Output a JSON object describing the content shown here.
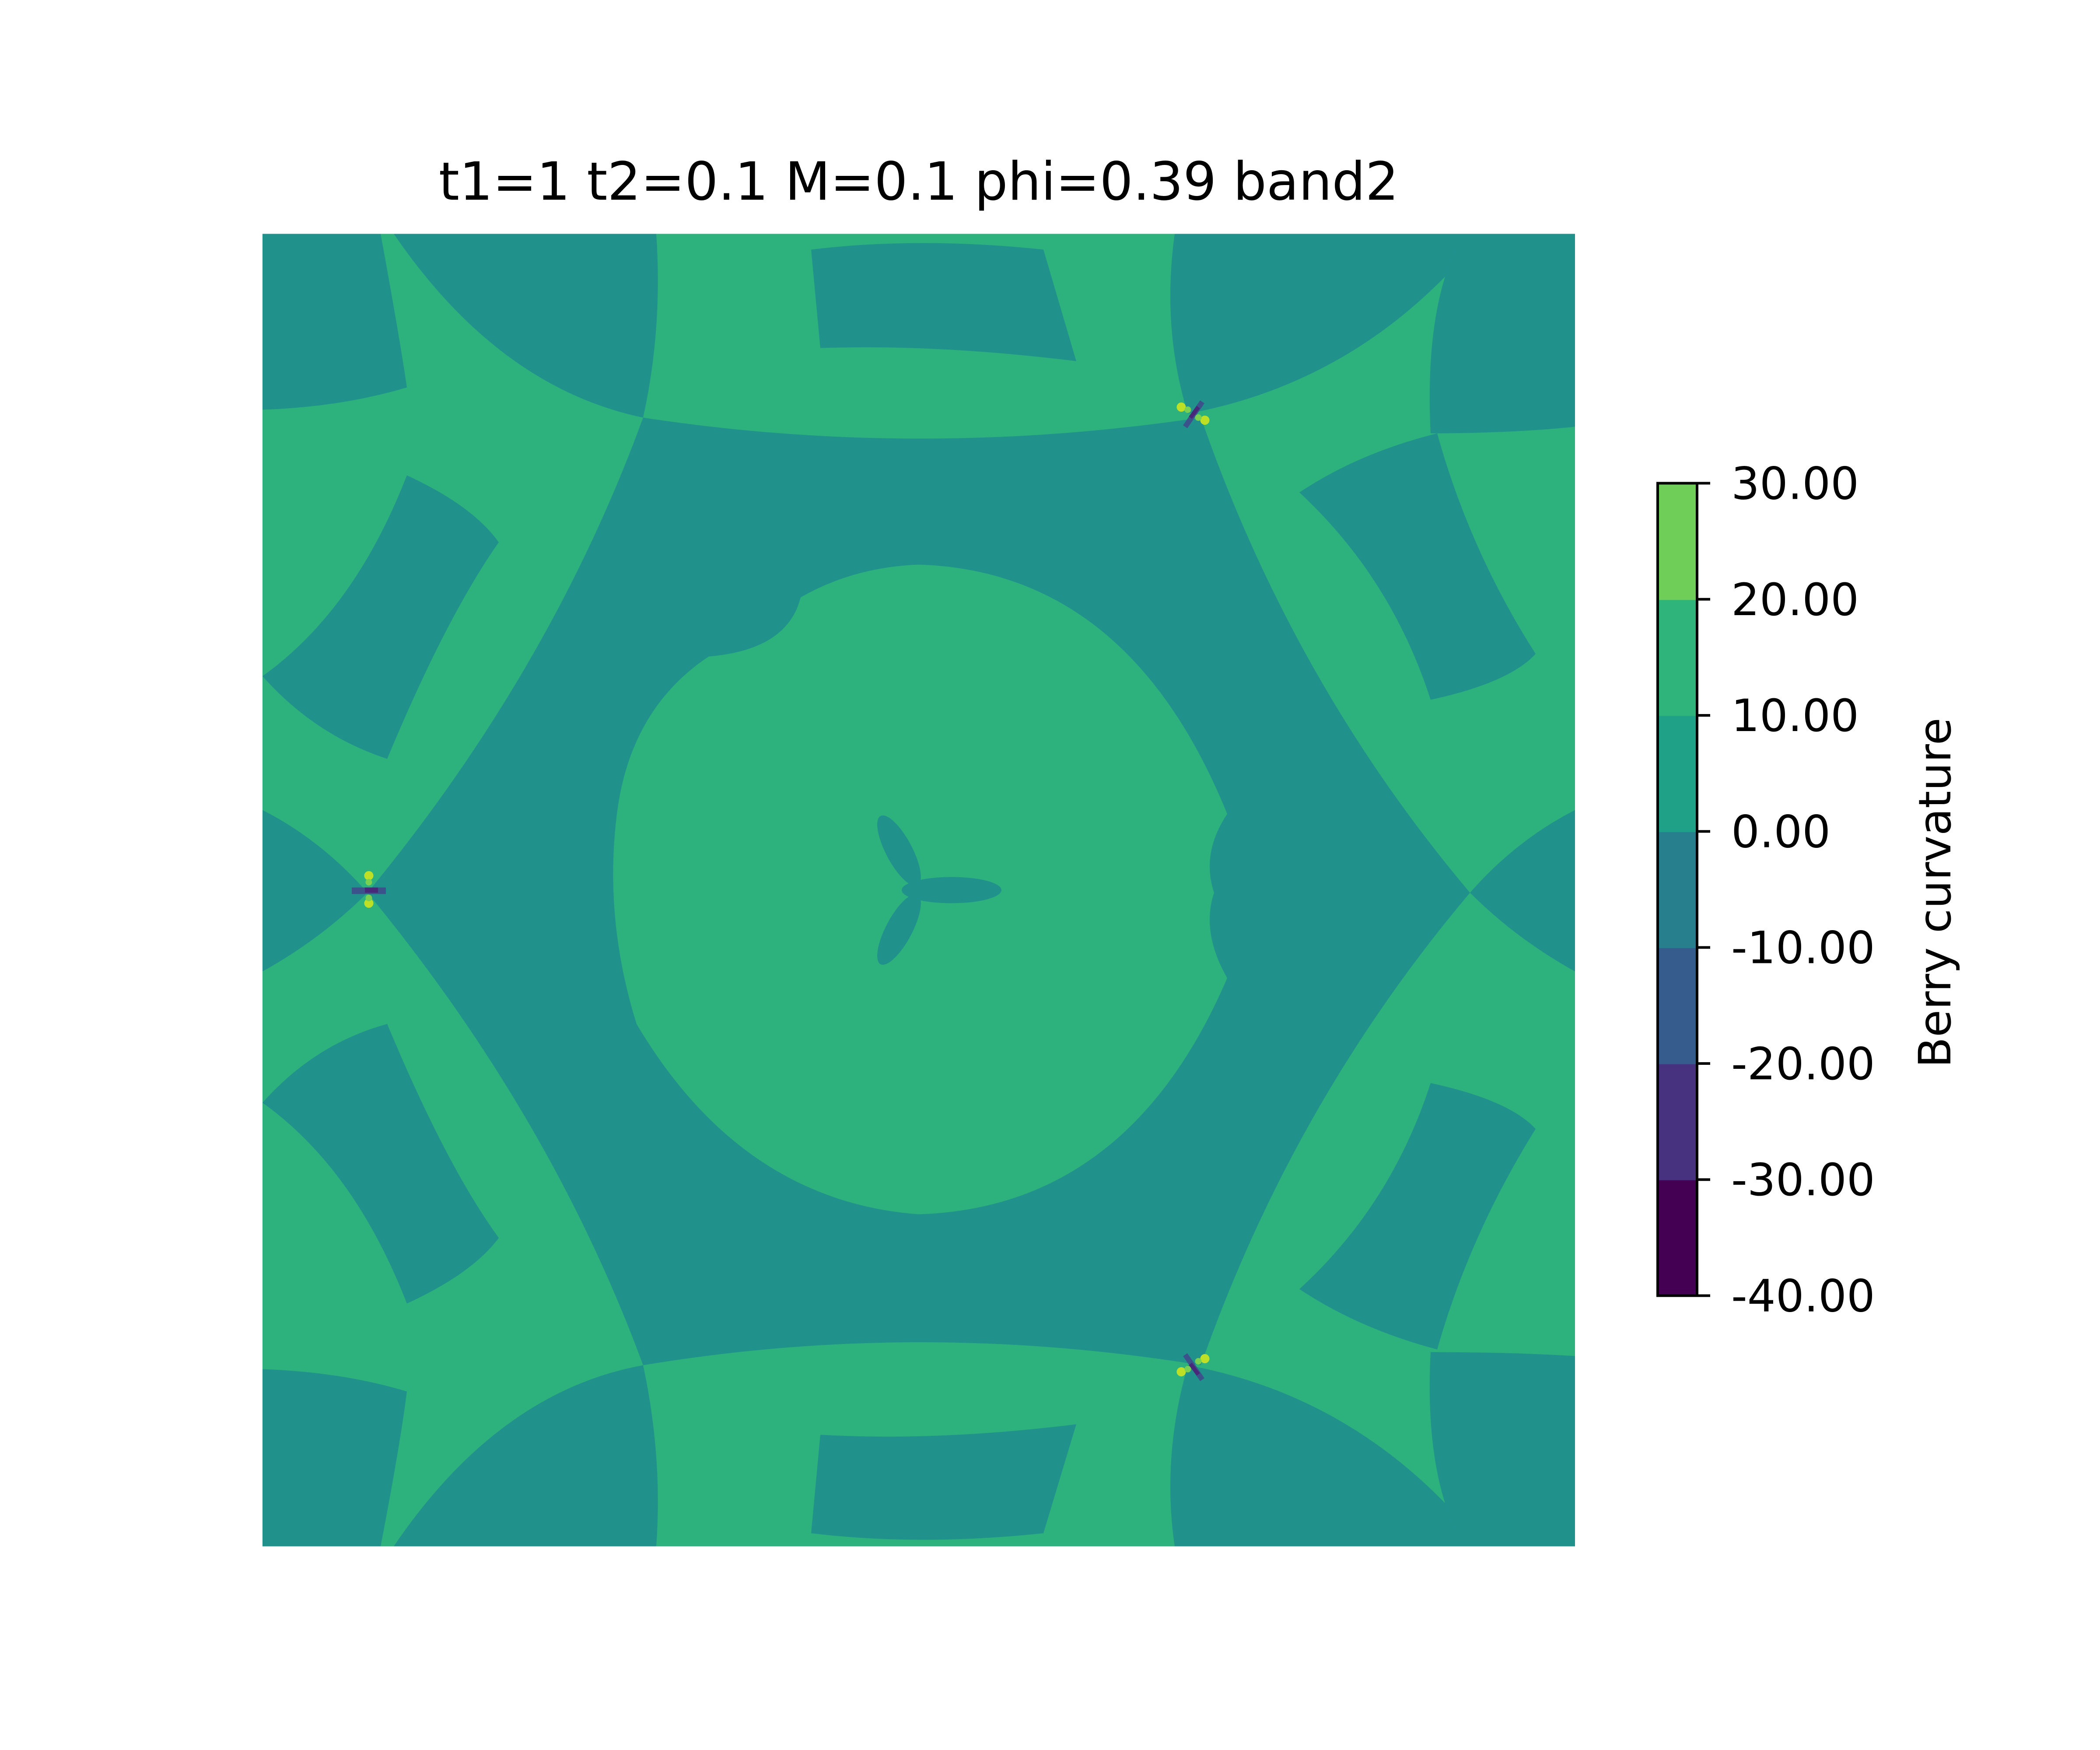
{
  "chart_data": {
    "type": "heatmap",
    "subtype": "filled-contour",
    "title": "t1=1 t2=0.1 M=0.1 phi=0.39 band2",
    "xlabel": "",
    "ylabel": "",
    "axes_visible": false,
    "grid": false,
    "colorbar": {
      "label": "Berry curvature",
      "levels": [
        -40,
        -30,
        -20,
        -10,
        0,
        10,
        20,
        30
      ],
      "tick_labels": [
        "30.00",
        "20.00",
        "10.00",
        "0.00",
        "-10.00",
        "-20.00",
        "-30.00",
        "-40.00"
      ],
      "band_colors": [
        "#440154",
        "#46327e",
        "#365c8d",
        "#277f8e",
        "#1fa187",
        "#2fb47c",
        "#6ece58",
        "#cde11d"
      ],
      "placement": "right"
    },
    "field_description": "Berry curvature of band 2 over a square k-space window; dominant values lie in the -10..0 and 0..10 bands, with sharp +/- extrema near three Dirac-like points (left-middle, upper-right, lower-right)."
  },
  "colors": {
    "neg_band": "#21918c",
    "pos_band": "#2db27d",
    "deep_negative": "#3b528b",
    "dark_negative": "#482878",
    "high_positive": "#bddf26",
    "mid_positive": "#7ad151"
  }
}
